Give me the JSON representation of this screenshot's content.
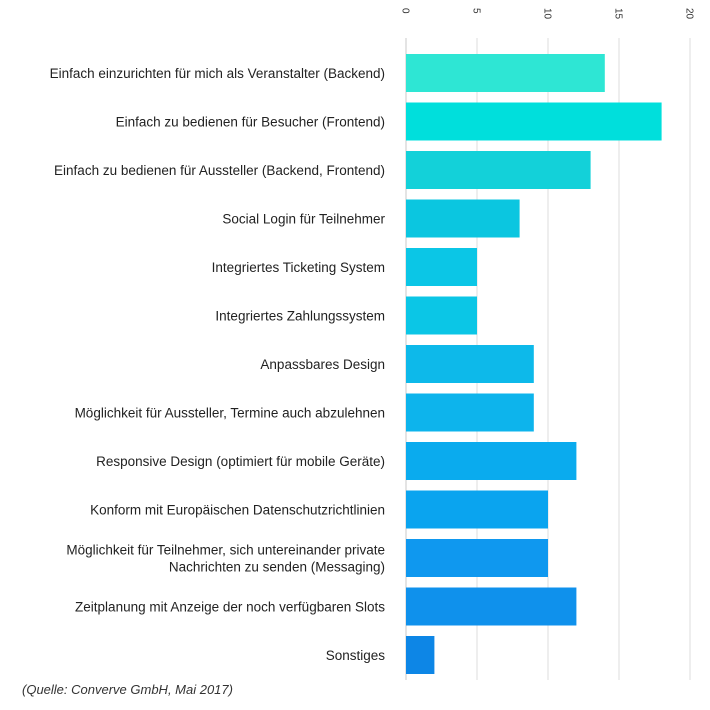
{
  "chart_data": {
    "type": "bar",
    "orientation": "horizontal",
    "categories": [
      [
        "Einfach einzurichten für mich als Veranstalter (Backend)"
      ],
      [
        "Einfach zu bedienen für Besucher (Frontend)"
      ],
      [
        "Einfach zu bedienen für Aussteller (Backend, Frontend)"
      ],
      [
        "Social Login für Teilnehmer"
      ],
      [
        "Integriertes Ticketing System"
      ],
      [
        "Integriertes Zahlungssystem"
      ],
      [
        "Anpassbares Design"
      ],
      [
        "Möglichkeit für Aussteller, Termine auch abzulehnen"
      ],
      [
        "Responsive Design (optimiert für mobile Geräte)"
      ],
      [
        "Konform mit Europäischen Datenschutzrichtlinien"
      ],
      [
        "Möglichkeit für Teilnehmer, sich untereinander private",
        "Nachrichten zu senden (Messaging)"
      ],
      [
        "Zeitplanung mit Anzeige der noch verfügbaren Slots"
      ],
      [
        "Sonstiges"
      ]
    ],
    "values": [
      14,
      18,
      13,
      8,
      5,
      5,
      9,
      9,
      12,
      10,
      10,
      12,
      2
    ],
    "xlim": [
      0,
      20
    ],
    "ticks": [
      "0",
      "5",
      "10",
      "15",
      "20"
    ],
    "tick_values": [
      0,
      5,
      10,
      15,
      20
    ],
    "grid": true,
    "bar_colors": [
      "#2ee6d4",
      "#00dfdc",
      "#13d1d9",
      "#0bc6e0",
      "#0bc6e6",
      "#0bc6e6",
      "#0db9ea",
      "#0db4ec",
      "#0aabee",
      "#0aa4ef",
      "#0f98ef",
      "#0f91ec",
      "#0d86e6"
    ]
  },
  "source": "(Quelle: Converve GmbH, Mai 2017)"
}
